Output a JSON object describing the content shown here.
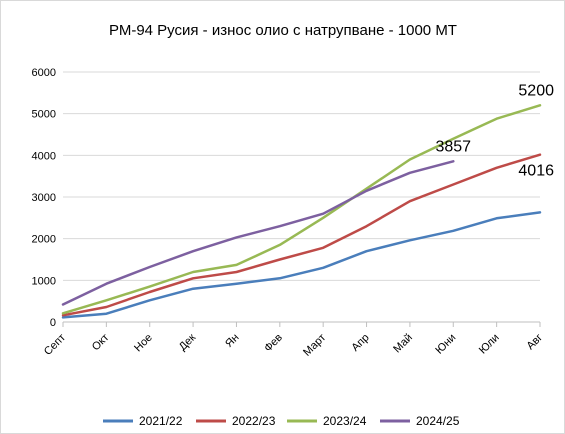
{
  "chart_data": {
    "type": "line",
    "title": "РМ-94  Русия - износ  олио  с натрупване - 1000 МТ",
    "categories": [
      "Септ",
      "Окт",
      "Ное",
      "Дек",
      "Ян",
      "Фев",
      "Март",
      "Апр",
      "Май",
      "Юни",
      "Юли",
      "Авг"
    ],
    "ylim": [
      0,
      6000
    ],
    "yticks": [
      0,
      1000,
      2000,
      3000,
      4000,
      5000,
      6000
    ],
    "grid": true,
    "legend": "bottom",
    "series": [
      {
        "name": "2021/22",
        "color": "#4a7ebb",
        "values": [
          110,
          200,
          520,
          800,
          920,
          1050,
          1300,
          1700,
          1960,
          2190,
          2490,
          2630
        ]
      },
      {
        "name": "2022/23",
        "color": "#be4b48",
        "values": [
          160,
          360,
          720,
          1050,
          1200,
          1500,
          1780,
          2300,
          2900,
          3300,
          3700,
          4016
        ]
      },
      {
        "name": "2023/24",
        "color": "#98b954",
        "values": [
          210,
          520,
          850,
          1200,
          1370,
          1850,
          2500,
          3200,
          3900,
          4400,
          4880,
          5200
        ]
      },
      {
        "name": "2024/25",
        "color": "#7d60a0",
        "values": [
          420,
          920,
          1320,
          1700,
          2030,
          2300,
          2600,
          3150,
          3580,
          3857,
          null,
          null
        ]
      }
    ],
    "annotations": [
      {
        "text": "5200",
        "series": 2,
        "index": 11,
        "place": "above"
      },
      {
        "text": "4016",
        "series": 1,
        "index": 11,
        "place": "below"
      },
      {
        "text": "3857",
        "series": 3,
        "index": 9,
        "place": "above"
      }
    ]
  }
}
